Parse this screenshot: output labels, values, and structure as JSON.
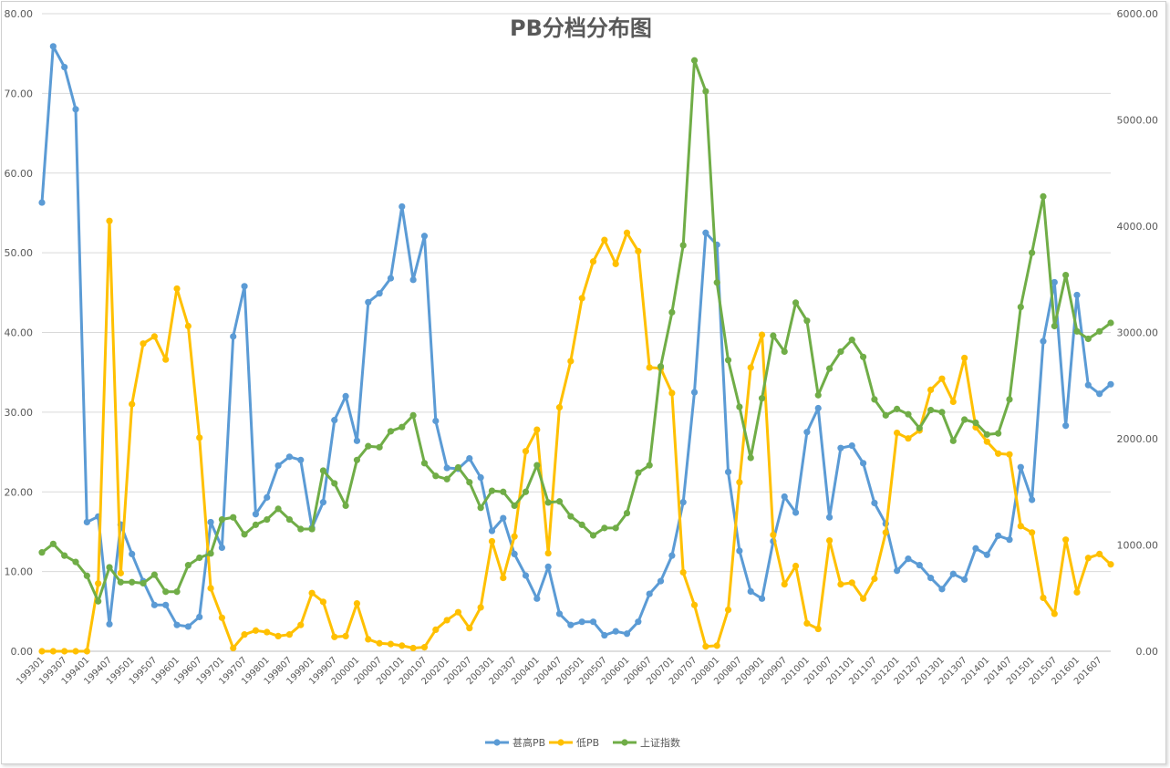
{
  "chart_data": {
    "type": "line",
    "title": "PB分档分布图",
    "legend_position": "bottom",
    "grid": true,
    "y_left_lim": [
      0,
      80
    ],
    "y_left_ticks": [
      "0.00",
      "10.00",
      "20.00",
      "30.00",
      "40.00",
      "50.00",
      "60.00",
      "70.00",
      "80.00"
    ],
    "y_right_lim": [
      0,
      6000
    ],
    "y_right_ticks": [
      "0.00",
      "1000.00",
      "2000.00",
      "3000.00",
      "4000.00",
      "5000.00",
      "6000.00"
    ],
    "x_tick_labels": [
      "199301",
      "199307",
      "199401",
      "199407",
      "199501",
      "199507",
      "199601",
      "199607",
      "199701",
      "199707",
      "199801",
      "199807",
      "199901",
      "199907",
      "200001",
      "200007",
      "200101",
      "200107",
      "200201",
      "200207",
      "200301",
      "200307",
      "200401",
      "200407",
      "200501",
      "200507",
      "200601",
      "200607",
      "200701",
      "200707",
      "200801",
      "200807",
      "200901",
      "200907",
      "201001",
      "201007",
      "201101",
      "201107",
      "201201",
      "201207",
      "201301",
      "201307",
      "201401",
      "201407",
      "201501",
      "201507",
      "201601",
      "201607"
    ],
    "series": [
      {
        "name": "甚高PB",
        "color": "#5b9bd5",
        "axis": "left",
        "values": [
          56.3,
          75.9,
          73.3,
          68.0,
          16.2,
          16.9,
          3.4,
          15.9,
          12.2,
          8.8,
          5.8,
          5.8,
          3.3,
          3.1,
          4.3,
          16.2,
          13.0,
          39.5,
          45.8,
          17.2,
          19.3,
          23.3,
          24.4,
          24.0,
          15.5,
          18.7,
          29.0,
          32.0,
          26.4,
          43.8,
          44.9,
          46.8,
          55.8,
          46.6,
          52.1,
          28.9,
          23.0,
          22.9,
          24.2,
          21.8,
          15.1,
          16.7,
          12.2,
          9.5,
          6.6,
          10.6,
          4.7,
          3.3,
          3.7,
          3.7,
          2.0,
          2.5,
          2.2,
          3.7,
          7.2,
          8.8,
          12.0,
          18.7,
          32.5,
          52.5,
          51.0,
          22.5,
          12.6,
          7.5,
          6.6,
          13.8,
          19.4,
          17.4,
          27.5,
          30.5,
          16.8,
          25.5,
          25.8,
          23.6,
          18.6,
          16.0,
          10.1,
          11.6,
          10.8,
          9.2,
          7.8,
          9.7,
          9.0,
          12.9,
          12.1,
          14.5,
          14.0,
          23.1,
          19.0,
          38.9,
          46.3,
          28.3,
          44.7,
          33.4,
          32.3,
          33.5
        ]
      },
      {
        "name": "低PB",
        "color": "#ffc000",
        "axis": "left",
        "values": [
          0.0,
          0.0,
          0.0,
          0.0,
          0.0,
          8.5,
          54.0,
          9.8,
          31.0,
          38.6,
          39.5,
          36.6,
          45.5,
          40.8,
          26.8,
          7.9,
          4.2,
          0.4,
          2.1,
          2.6,
          2.4,
          1.9,
          2.1,
          3.3,
          7.3,
          6.2,
          1.8,
          1.9,
          6.0,
          1.5,
          1.0,
          0.9,
          0.7,
          0.4,
          0.5,
          2.7,
          3.9,
          4.9,
          2.9,
          5.5,
          13.8,
          9.2,
          14.4,
          25.1,
          27.8,
          12.3,
          30.6,
          36.4,
          44.3,
          48.9,
          51.6,
          48.6,
          52.5,
          50.2,
          35.6,
          35.5,
          32.4,
          9.9,
          5.8,
          0.6,
          0.7,
          5.2,
          21.2,
          35.6,
          39.7,
          14.6,
          8.4,
          10.7,
          3.5,
          2.8,
          13.9,
          8.4,
          8.6,
          6.6,
          9.1,
          14.9,
          27.4,
          26.7,
          27.7,
          32.8,
          34.2,
          31.3,
          36.8,
          28.1,
          26.3,
          24.8,
          24.7,
          15.7,
          14.9,
          6.7,
          4.7,
          14.0,
          7.4,
          11.7,
          12.2,
          10.9
        ]
      },
      {
        "name": "上证指数",
        "color": "#70ad47",
        "axis": "right",
        "values": [
          930,
          1010,
          900,
          840,
          710,
          470,
          790,
          650,
          650,
          640,
          720,
          560,
          560,
          810,
          880,
          920,
          1240,
          1260,
          1100,
          1190,
          1240,
          1340,
          1240,
          1150,
          1150,
          1700,
          1580,
          1370,
          1800,
          1930,
          1920,
          2070,
          2110,
          2220,
          1770,
          1650,
          1620,
          1730,
          1590,
          1350,
          1510,
          1500,
          1370,
          1500,
          1750,
          1400,
          1410,
          1270,
          1190,
          1090,
          1160,
          1160,
          1300,
          1680,
          1750,
          2680,
          3190,
          3820,
          5560,
          5270,
          3470,
          2740,
          2300,
          1820,
          2380,
          2970,
          2820,
          3280,
          3110,
          2410,
          2660,
          2820,
          2930,
          2770,
          2370,
          2220,
          2280,
          2230,
          2100,
          2270,
          2250,
          1980,
          2180,
          2150,
          2040,
          2050,
          2370,
          3240,
          3750,
          4280,
          3060,
          3540,
          3010,
          2940,
          3010,
          3090
        ]
      }
    ]
  }
}
